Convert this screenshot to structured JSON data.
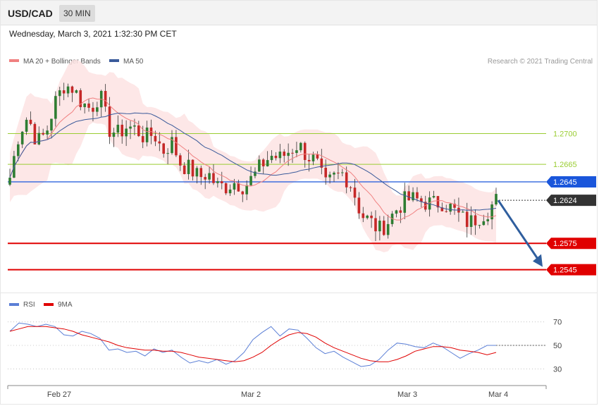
{
  "header": {
    "symbol": "USD/CAD",
    "timeframe": "30 MIN"
  },
  "timestamp": "Wednesday, March 3, 2021 1:32:30 PM CET",
  "legend": {
    "ma_bb": "MA 20 + Bollinger Bands",
    "ma50": "MA 50"
  },
  "credit": "Research © 2021 Trading Central",
  "rsi_legend": {
    "rsi": "RSI",
    "ma9": "9MA"
  },
  "colors": {
    "up": "#2e7d32",
    "down": "#c62828",
    "ma20": "#f08080",
    "ma50": "#3a5a9a",
    "bands": "#fde3e3",
    "resistance": "#9acd32",
    "pivot": "#1a56db",
    "support": "#e00000",
    "current": "#333333",
    "rsi": "#5b7fd6",
    "rsi_ma": "#e00000"
  },
  "chart_data": {
    "type": "candlestick",
    "y_range": [
      1.2515,
      1.2775
    ],
    "x_labels": [
      "Feb 27",
      "Mar 2",
      "Mar 3",
      "Mar 4"
    ],
    "levels": [
      {
        "value": 1.27,
        "label": "1.2700",
        "kind": "resistance"
      },
      {
        "value": 1.2665,
        "label": "1.2665",
        "kind": "resistance"
      },
      {
        "value": 1.2645,
        "label": "1.2645",
        "kind": "pivot"
      },
      {
        "value": 1.2624,
        "label": "1.2624",
        "kind": "current"
      },
      {
        "value": 1.2575,
        "label": "1.2575",
        "kind": "support"
      },
      {
        "value": 1.2545,
        "label": "1.2545",
        "kind": "support"
      }
    ],
    "close_path": [
      1.265,
      1.27,
      1.272,
      1.269,
      1.27,
      1.2735,
      1.2755,
      1.2752,
      1.2735,
      1.2728,
      1.2745,
      1.2705,
      1.27,
      1.2708,
      1.2705,
      1.2695,
      1.27,
      1.268,
      1.269,
      1.2665,
      1.266,
      1.265,
      1.2655,
      1.264,
      1.264,
      1.2645,
      1.264,
      1.265,
      1.2665,
      1.2675,
      1.2672,
      1.268,
      1.2688,
      1.2675,
      1.2668,
      1.264,
      1.265,
      1.2655,
      1.264,
      1.2608,
      1.26,
      1.259,
      1.26,
      1.2615,
      1.2625,
      1.2625,
      1.2622,
      1.262,
      1.2622,
      1.2615,
      1.2605,
      1.2598,
      1.2605,
      1.2612,
      1.2624
    ],
    "rsi": {
      "levels": [
        70,
        50,
        30
      ],
      "range": [
        20,
        80
      ],
      "current": 50,
      "values": [
        62,
        69,
        68,
        66,
        68,
        66,
        59,
        58,
        62,
        60,
        56,
        46,
        47,
        44,
        45,
        41,
        47,
        44,
        46,
        40,
        35,
        37,
        35,
        38,
        34,
        37,
        44,
        55,
        61,
        66,
        58,
        64,
        63,
        56,
        48,
        43,
        45,
        40,
        36,
        32,
        33,
        38,
        46,
        52,
        51,
        49,
        48,
        52,
        49,
        44,
        39,
        43,
        46,
        50,
        50
      ],
      "ma9": [
        62,
        64,
        66,
        66,
        66,
        65,
        64,
        62,
        59,
        57,
        55,
        53,
        50,
        48,
        47,
        46,
        46,
        45,
        45,
        44,
        42,
        40,
        39,
        38,
        37,
        36,
        37,
        40,
        44,
        50,
        55,
        59,
        61,
        60,
        57,
        52,
        48,
        45,
        42,
        39,
        37,
        36,
        36,
        38,
        41,
        45,
        47,
        49,
        49,
        48,
        46,
        45,
        44,
        42,
        44
      ]
    }
  }
}
